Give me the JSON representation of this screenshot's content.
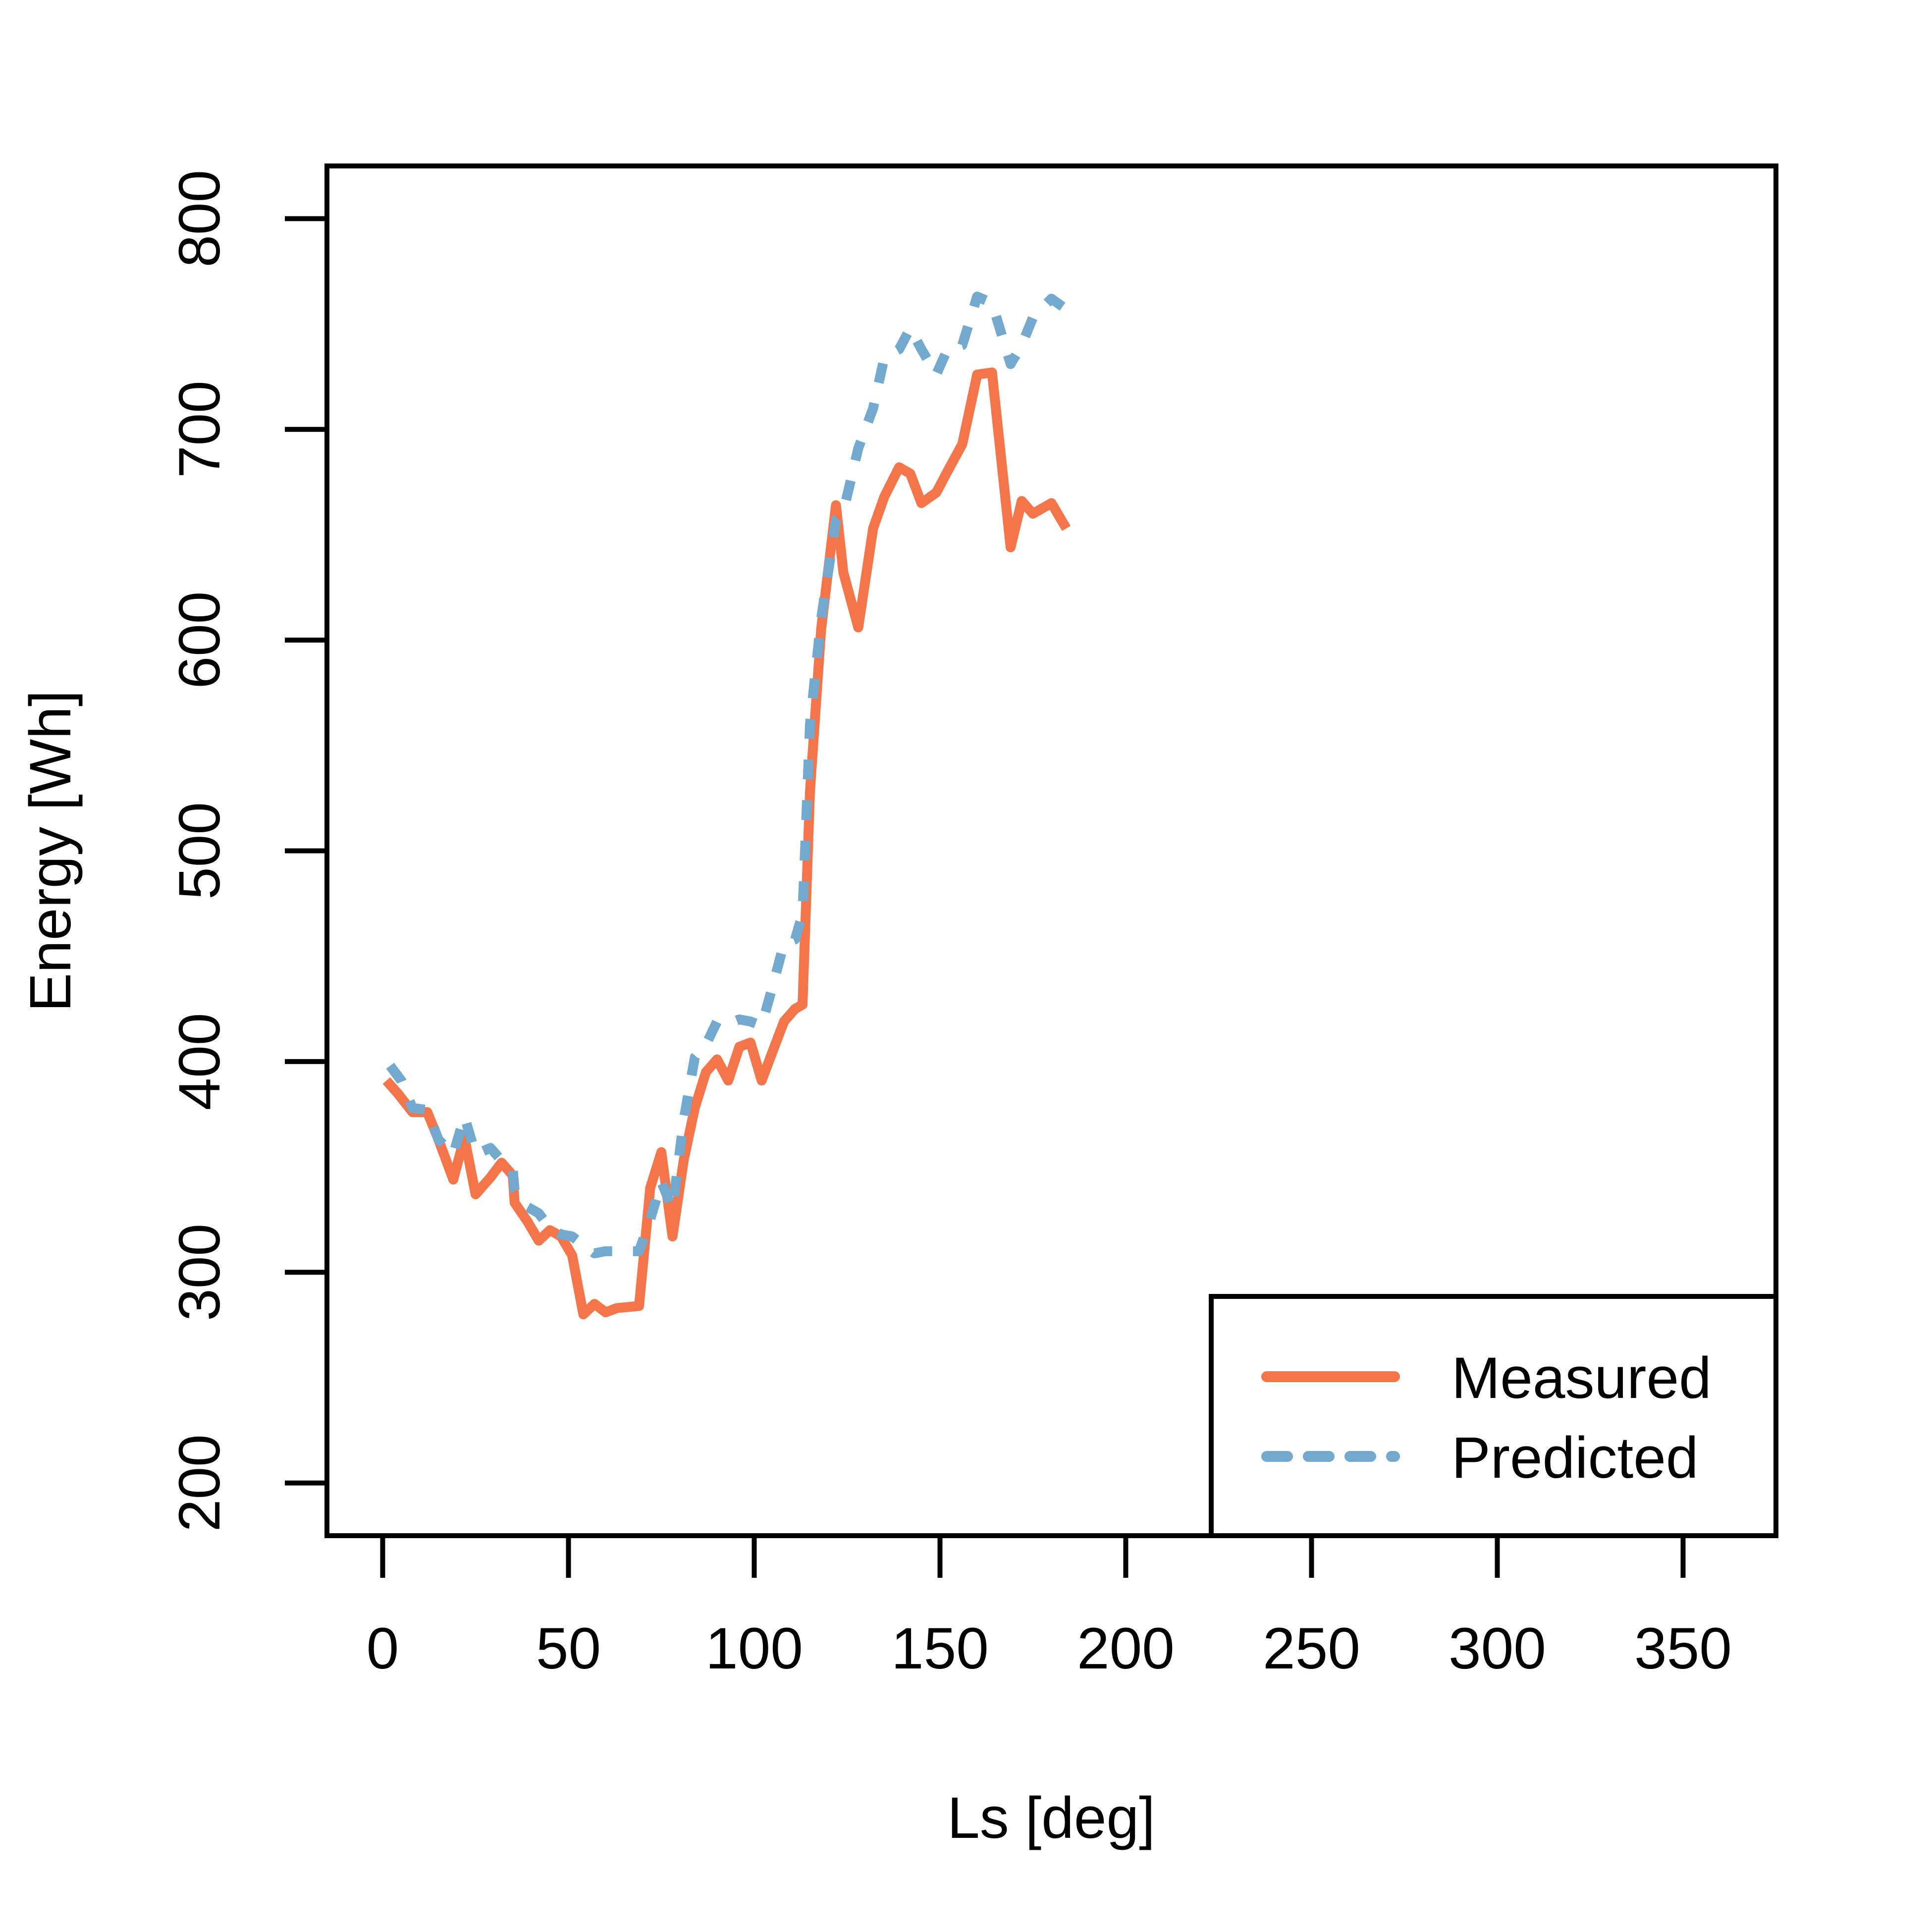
{
  "chart_data": {
    "type": "line",
    "title": "",
    "xlabel": "Ls [deg]",
    "ylabel": "Energy [Wh]",
    "xlim": [
      -15,
      375
    ],
    "ylim": [
      175,
      825
    ],
    "x_ticks": [
      0,
      50,
      100,
      150,
      200,
      250,
      300,
      350
    ],
    "x_tick_labels": [
      "0",
      "50",
      "100",
      "150",
      "200",
      "250",
      "300",
      "350"
    ],
    "y_ticks": [
      200,
      300,
      400,
      500,
      600,
      700,
      800
    ],
    "y_tick_labels": [
      "200",
      "300",
      "400",
      "500",
      "600",
      "700",
      "800"
    ],
    "grid": false,
    "legend_position": "bottom-right",
    "series": [
      {
        "name": "Measured",
        "style": "solid",
        "color": "#F4754A",
        "points": [
          [
            1,
            391
          ],
          [
            4,
            385
          ],
          [
            8,
            376
          ],
          [
            12,
            376
          ],
          [
            15,
            363
          ],
          [
            19,
            344
          ],
          [
            22,
            364
          ],
          [
            25,
            337
          ],
          [
            29,
            345
          ],
          [
            32,
            352
          ],
          [
            35,
            346
          ],
          [
            35.5,
            333
          ],
          [
            39,
            324
          ],
          [
            42,
            315
          ],
          [
            45,
            320
          ],
          [
            48,
            317
          ],
          [
            51,
            308
          ],
          [
            54,
            280
          ],
          [
            57,
            285
          ],
          [
            60,
            281
          ],
          [
            63,
            283
          ],
          [
            69,
            284
          ],
          [
            72,
            340
          ],
          [
            75,
            357
          ],
          [
            78,
            317
          ],
          [
            81,
            353
          ],
          [
            84,
            378
          ],
          [
            87,
            395
          ],
          [
            90,
            401
          ],
          [
            93,
            391
          ],
          [
            96,
            407
          ],
          [
            99,
            409
          ],
          [
            102,
            391
          ],
          [
            105,
            405
          ],
          [
            108,
            419
          ],
          [
            111,
            425
          ],
          [
            113,
            427
          ],
          [
            115,
            528
          ],
          [
            118,
            605
          ],
          [
            122,
            664
          ],
          [
            124,
            632
          ],
          [
            128,
            606
          ],
          [
            132,
            653
          ],
          [
            135,
            668
          ],
          [
            139,
            682
          ],
          [
            142,
            679
          ],
          [
            145,
            665
          ],
          [
            149,
            670
          ],
          [
            152,
            680
          ],
          [
            156,
            693
          ],
          [
            160,
            726
          ],
          [
            164,
            727
          ],
          [
            169,
            644
          ],
          [
            172,
            666
          ],
          [
            175,
            660
          ],
          [
            180,
            665
          ],
          [
            184,
            653
          ]
        ]
      },
      {
        "name": "Predicted",
        "style": "dashed",
        "color": "#74A9CF",
        "points": [
          [
            2,
            398
          ],
          [
            5,
            391
          ],
          [
            8,
            378
          ],
          [
            12,
            377
          ],
          [
            15,
            363
          ],
          [
            19,
            356
          ],
          [
            22,
            374
          ],
          [
            25,
            356
          ],
          [
            29,
            359
          ],
          [
            32,
            353
          ],
          [
            35,
            349
          ],
          [
            35.5,
            339
          ],
          [
            39,
            331
          ],
          [
            42,
            328
          ],
          [
            45,
            321
          ],
          [
            48,
            318
          ],
          [
            51,
            317
          ],
          [
            54,
            313
          ],
          [
            57,
            309
          ],
          [
            60,
            310
          ],
          [
            63,
            310
          ],
          [
            69,
            310
          ],
          [
            72,
            325
          ],
          [
            75,
            343
          ],
          [
            78,
            330
          ],
          [
            81,
            372
          ],
          [
            84,
            402
          ],
          [
            87,
            408
          ],
          [
            90,
            419
          ],
          [
            93,
            418
          ],
          [
            96,
            420
          ],
          [
            99,
            419
          ],
          [
            102,
            417
          ],
          [
            105,
            436
          ],
          [
            108,
            456
          ],
          [
            111,
            458
          ],
          [
            113,
            470
          ],
          [
            115,
            560
          ],
          [
            118,
            610
          ],
          [
            122,
            657
          ],
          [
            124,
            661
          ],
          [
            128,
            691
          ],
          [
            132,
            710
          ],
          [
            135,
            734
          ],
          [
            139,
            738
          ],
          [
            142,
            748
          ],
          [
            145,
            738
          ],
          [
            149,
            726
          ],
          [
            152,
            738
          ],
          [
            156,
            740
          ],
          [
            160,
            763
          ],
          [
            164,
            760
          ],
          [
            169,
            731
          ],
          [
            172,
            740
          ],
          [
            175,
            753
          ],
          [
            180,
            762
          ],
          [
            184,
            757
          ]
        ]
      }
    ]
  }
}
